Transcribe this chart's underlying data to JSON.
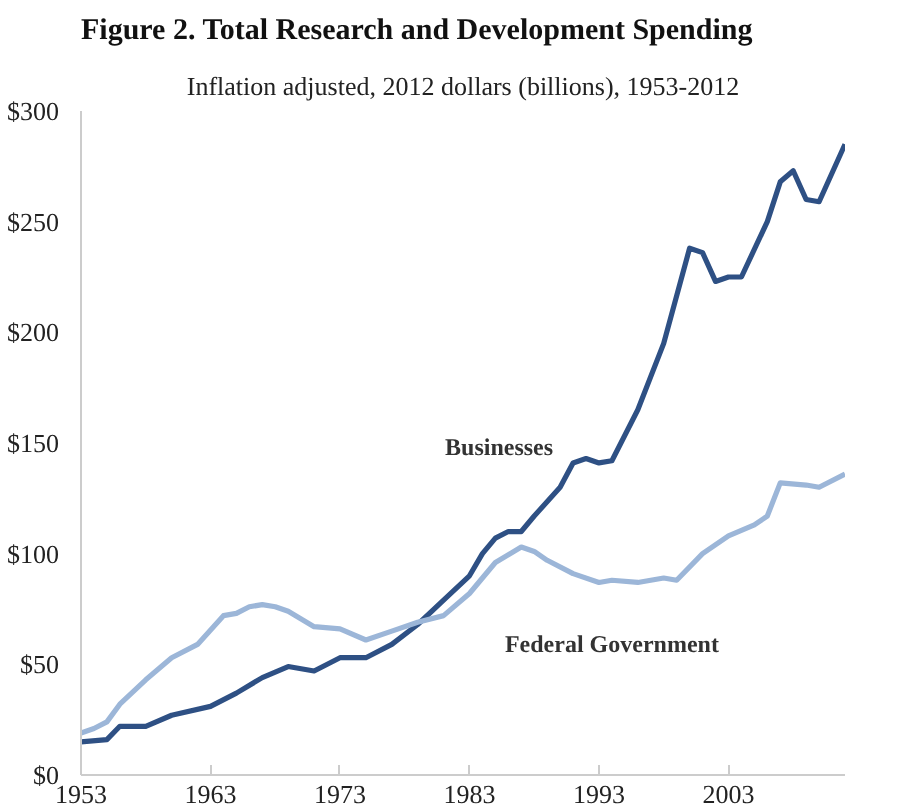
{
  "chart_data": {
    "type": "line",
    "title": "Figure 2. Total Research and Development Spending",
    "subtitle": "Inflation adjusted, 2012 dollars (billions), 1953-2012",
    "xlim": [
      1953,
      2012
    ],
    "xticks": [
      1953,
      1963,
      1973,
      1983,
      1993,
      2003
    ],
    "ylim": [
      0,
      300
    ],
    "yticks": [
      {
        "value": 0,
        "label": "$0"
      },
      {
        "value": 50,
        "label": "$50"
      },
      {
        "value": 100,
        "label": "$100"
      },
      {
        "value": 150,
        "label": "$150"
      },
      {
        "value": 200,
        "label": "$200"
      },
      {
        "value": 250,
        "label": "$250"
      },
      {
        "value": 300,
        "label": "$300"
      }
    ],
    "grid": false,
    "legend": false,
    "marker": "none",
    "line_style": "solid",
    "series": [
      {
        "name": "Businesses",
        "color": "#2e5084",
        "x": [
          1953,
          1955,
          1956,
          1958,
          1960,
          1963,
          1965,
          1967,
          1969,
          1971,
          1973,
          1975,
          1977,
          1979,
          1981,
          1983,
          1984,
          1985,
          1986,
          1987,
          1988,
          1990,
          1991,
          1992,
          1993,
          1994,
          1996,
          1998,
          2000,
          2001,
          2002,
          2003,
          2004,
          2006,
          2007,
          2008,
          2009,
          2010,
          2012
        ],
        "values": [
          15,
          16,
          22,
          22,
          27,
          31,
          37,
          44,
          49,
          47,
          53,
          53,
          59,
          68,
          79,
          90,
          100,
          107,
          110,
          110,
          117,
          130,
          141,
          143,
          141,
          142,
          165,
          195,
          238,
          236,
          223,
          225,
          225,
          250,
          268,
          273,
          260,
          259,
          285
        ]
      },
      {
        "name": "Federal Government",
        "color": "#9cb6d8",
        "x": [
          1953,
          1954,
          1955,
          1956,
          1958,
          1960,
          1962,
          1964,
          1965,
          1966,
          1967,
          1968,
          1969,
          1971,
          1973,
          1975,
          1977,
          1979,
          1981,
          1983,
          1985,
          1987,
          1988,
          1989,
          1991,
          1993,
          1994,
          1996,
          1998,
          1999,
          2001,
          2003,
          2005,
          2006,
          2007,
          2009,
          2010,
          2012
        ],
        "values": [
          19,
          21,
          24,
          32,
          43,
          53,
          59,
          72,
          73,
          76,
          77,
          76,
          74,
          67,
          66,
          61,
          65,
          69,
          72,
          82,
          96,
          103,
          101,
          97,
          91,
          87,
          88,
          87,
          89,
          88,
          100,
          108,
          113,
          117,
          132,
          131,
          130,
          136
        ]
      }
    ]
  }
}
